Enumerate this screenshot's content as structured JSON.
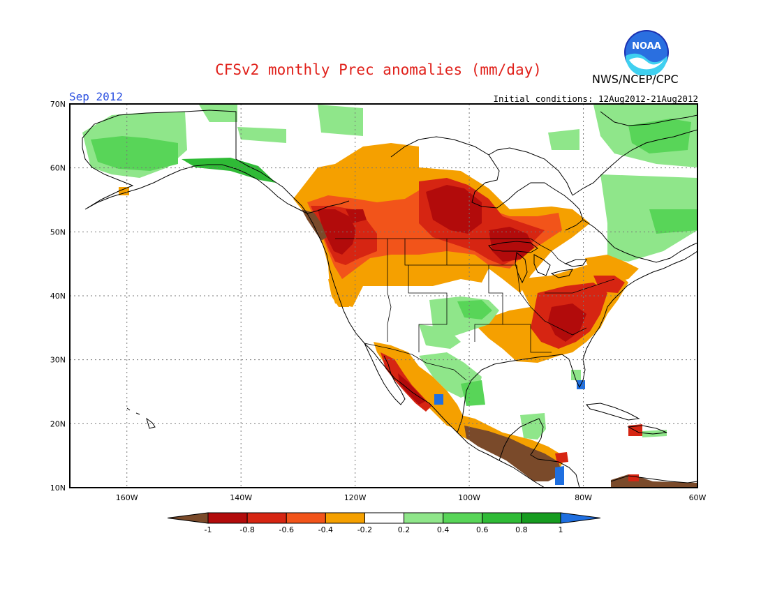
{
  "title": "CFSv2 monthly Prec anomalies (mm/day)",
  "month_label": "Sep 2012",
  "initial_conditions": "Initial conditions: 12Aug2012-21Aug2012",
  "agency": "NWS/NCEP/CPC",
  "logo_text": "NOAA",
  "map": {
    "lon_range": [
      -170,
      -60
    ],
    "lat_range": [
      10,
      70
    ],
    "lat_ticks": [
      "70N",
      "60N",
      "50N",
      "40N",
      "30N",
      "20N",
      "10N"
    ],
    "lon_ticks": [
      "160W",
      "140W",
      "120W",
      "100W",
      "80W",
      "60W"
    ],
    "grid": "dotted every 20° lon, 10° lat"
  },
  "colorbar": {
    "labels": [
      "-1",
      "-0.8",
      "-0.6",
      "-0.4",
      "-0.2",
      "0.2",
      "0.4",
      "0.6",
      "0.8",
      "1"
    ],
    "colors": [
      "#7a4a2a",
      "#b20b0b",
      "#d62512",
      "#f2541a",
      "#f5a000",
      "#ffffff",
      "#8fe68a",
      "#58d558",
      "#2fbb36",
      "#169c1f",
      "#1f6fe0"
    ]
  },
  "colors": {
    "title": "#e0201a",
    "month": "#2a4fe0"
  }
}
